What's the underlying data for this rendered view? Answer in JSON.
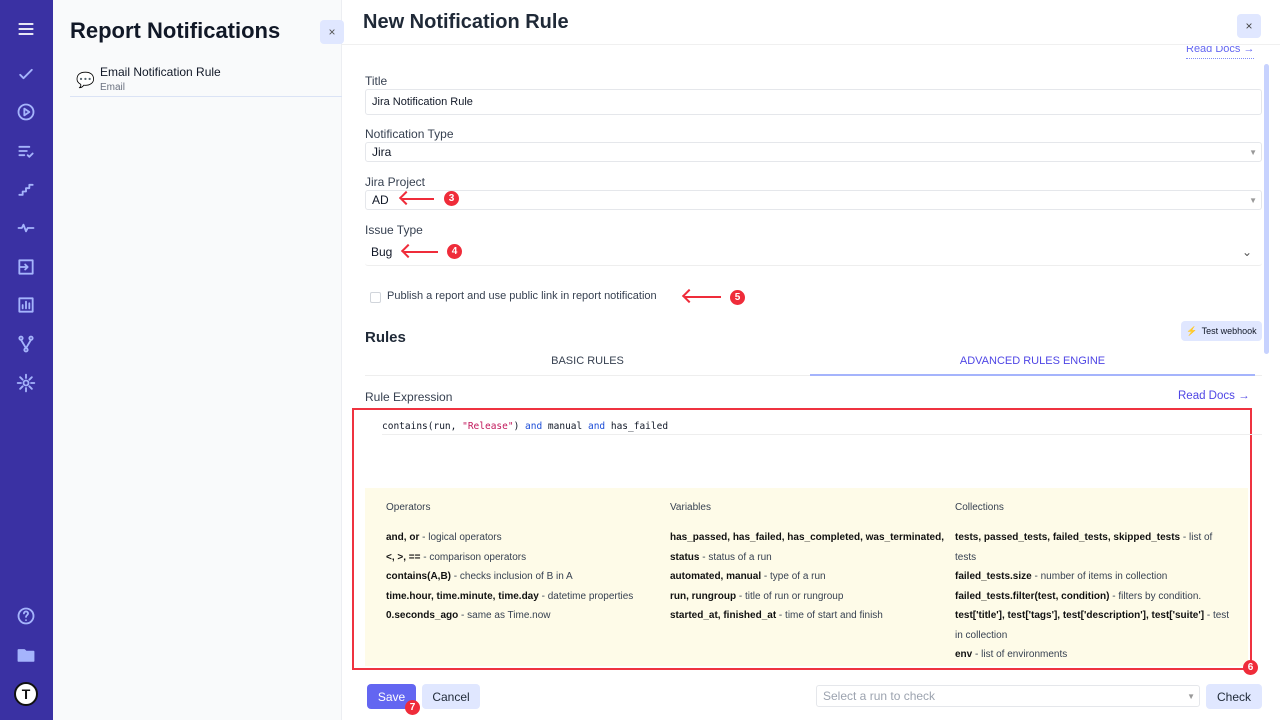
{
  "nav": {
    "icons": [
      "menu-icon",
      "check-icon",
      "play-circle-icon",
      "list-check-icon",
      "steps-icon",
      "pulse-icon",
      "import-icon",
      "chart-icon",
      "branch-icon",
      "gear-icon",
      "help-icon",
      "folder-icon"
    ],
    "avatar": "T"
  },
  "panel": {
    "title": "Report Notifications",
    "close": "×",
    "items": [
      {
        "title": "Email Notification Rule",
        "subtitle": "Email"
      }
    ]
  },
  "main": {
    "title": "New Notification Rule",
    "close": "×",
    "read_docs_top": "Read Docs →",
    "title_label": "Title",
    "title_value": "Jira Notification Rule",
    "type_label": "Notification Type",
    "type_value": "Jira",
    "project_label": "Jira Project",
    "project_value": "AD",
    "issue_label": "Issue Type",
    "issue_value": "Bug",
    "publish_label": "Publish a report and use public link in report notification",
    "rules_heading": "Rules",
    "test_webhook": "Test webhook",
    "tabs": [
      {
        "label": "BASIC RULES"
      },
      {
        "label": "ADVANCED RULES ENGINE",
        "active": true
      }
    ],
    "expr_label": "Rule Expression",
    "read_docs": "Read Docs →",
    "expr": {
      "fn": "contains",
      "p1": "(run, ",
      "str": "\"Release\"",
      "p2": ") ",
      "k1": "and",
      "m": " manual ",
      "k2": "and",
      "e": " has_failed"
    },
    "help": {
      "operators": {
        "heading": "Operators",
        "rows": [
          [
            "and, or",
            "logical operators"
          ],
          [
            "<, >, ==",
            "comparison operators"
          ],
          [
            "contains(A,B)",
            "checks inclusion of B in A"
          ],
          [
            "time.hour, time.minute, time.day",
            "datetime properties"
          ],
          [
            "0.seconds_ago",
            "same as Time.now"
          ]
        ]
      },
      "variables": {
        "heading": "Variables",
        "rows": [
          [
            "has_passed, has_failed, has_completed, was_terminated,",
            ""
          ],
          [
            "status",
            "status of a run"
          ],
          [
            "automated, manual",
            "type of a run"
          ],
          [
            "run, rungroup",
            "title of run or rungroup"
          ],
          [
            "started_at, finished_at",
            "time of start and finish"
          ]
        ]
      },
      "collections": {
        "heading": "Collections",
        "rows": [
          [
            "tests, passed_tests, failed_tests, skipped_tests",
            "list of"
          ],
          [
            "",
            "tests"
          ],
          [
            "failed_tests.size",
            "number of items in collection"
          ],
          [
            "failed_tests.filter(test, condition)",
            "filters by condition."
          ],
          [
            "test['title'], test['tags'], test['description'], test['suite']",
            "test"
          ],
          [
            "",
            "in collection"
          ],
          [
            "env",
            "list of environments"
          ]
        ]
      }
    },
    "save": "Save",
    "cancel": "Cancel",
    "run_placeholder": "Select a run to check",
    "check": "Check",
    "annotations": [
      "3",
      "4",
      "5",
      "6",
      "7"
    ]
  },
  "colors": {
    "nav": "#3a31a3",
    "accent": "#4f46e5",
    "annotation": "#ef2c3a",
    "help_bg": "#fefbe8"
  }
}
